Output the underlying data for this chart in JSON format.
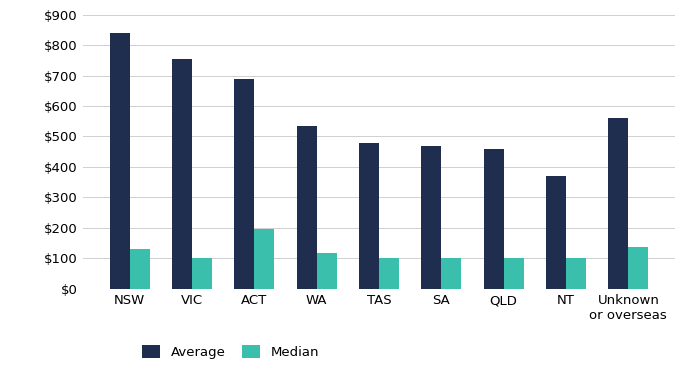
{
  "categories": [
    "NSW",
    "VIC",
    "ACT",
    "WA",
    "TAS",
    "SA",
    "QLD",
    "NT",
    "Unknown\nor overseas"
  ],
  "average": [
    840,
    755,
    690,
    535,
    480,
    470,
    458,
    370,
    562
  ],
  "median": [
    130,
    100,
    195,
    118,
    100,
    100,
    100,
    100,
    138
  ],
  "avg_color": "#1f2d4e",
  "med_color": "#3bbfad",
  "ylim": [
    0,
    900
  ],
  "yticks": [
    0,
    100,
    200,
    300,
    400,
    500,
    600,
    700,
    800,
    900
  ],
  "legend_labels": [
    "Average",
    "Median"
  ],
  "bar_width": 0.32,
  "grid_color": "#d0d0d0",
  "background_color": "#ffffff",
  "tick_fontsize": 9.5,
  "legend_fontsize": 9.5
}
